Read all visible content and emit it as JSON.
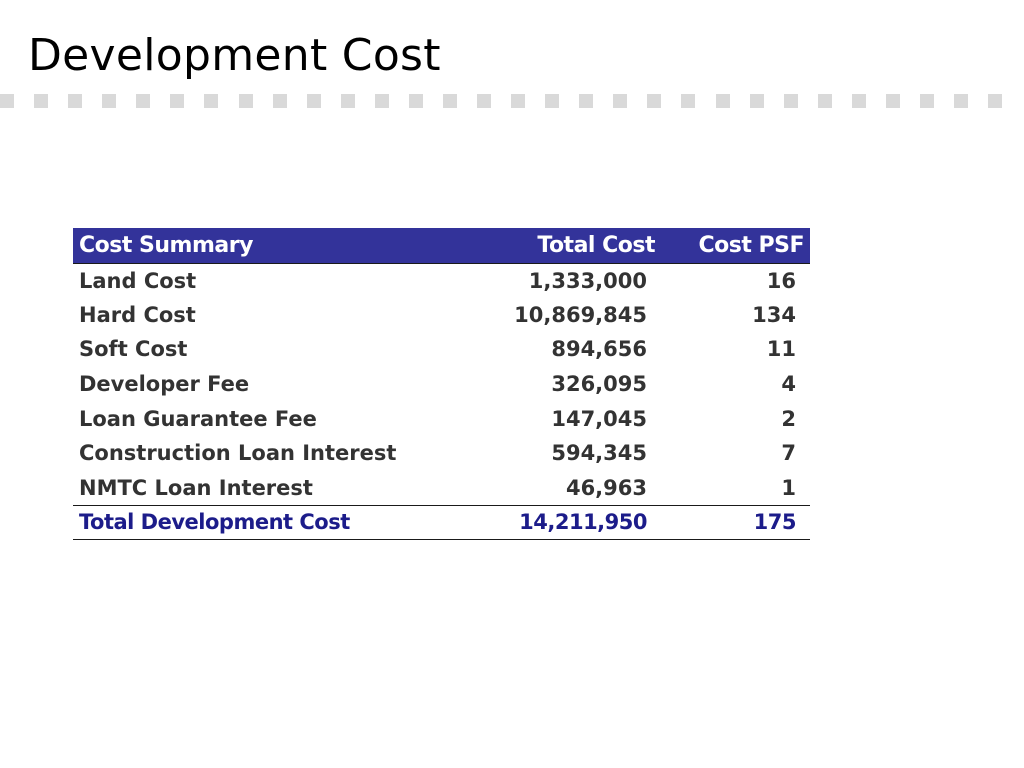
{
  "slide": {
    "title": "Development Cost"
  },
  "decoration": {
    "square_color": "#d9d9d9"
  },
  "table": {
    "header_bg": "#33339a",
    "total_text_color": "#1c1c8a",
    "headers": {
      "label": "Cost Summary",
      "total": "Total Cost",
      "psf": "Cost PSF"
    },
    "rows": [
      {
        "label": "Land Cost",
        "total": "1,333,000",
        "psf": "16"
      },
      {
        "label": "Hard Cost",
        "total": "10,869,845",
        "psf": "134"
      },
      {
        "label": "Soft Cost",
        "total": "894,656",
        "psf": "11"
      },
      {
        "label": "Developer Fee",
        "total": "326,095",
        "psf": "4"
      },
      {
        "label": "Loan Guarantee Fee",
        "total": "147,045",
        "psf": "2"
      },
      {
        "label": "Construction Loan Interest",
        "total": "594,345",
        "psf": "7"
      },
      {
        "label": "NMTC Loan Interest",
        "total": "46,963",
        "psf": "1"
      }
    ],
    "total_row": {
      "label": "Total Development Cost",
      "total": "14,211,950",
      "psf": "175"
    }
  }
}
